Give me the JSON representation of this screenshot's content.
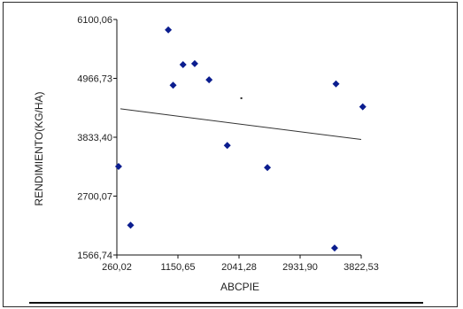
{
  "chart_data": {
    "type": "scatter",
    "xlabel": "ABCPIE",
    "ylabel": "RENDIMIENTO(KG/HA)",
    "xlim": [
      260.02,
      3822.53
    ],
    "ylim": [
      1566.74,
      6100.06
    ],
    "x_ticks": [
      "260,02",
      "1150,65",
      "2041,28",
      "2931,90",
      "3822,53"
    ],
    "y_ticks": [
      "6100,06",
      "4966,73",
      "3833,40",
      "2700,07",
      "1566,74"
    ],
    "x_tick_values": [
      260.02,
      1150.65,
      2041.28,
      2931.9,
      3822.53
    ],
    "y_tick_values": [
      6100.06,
      4966.73,
      3833.4,
      2700.07,
      1566.74
    ],
    "points": [
      {
        "x": 285,
        "y": 3270
      },
      {
        "x": 460,
        "y": 2140
      },
      {
        "x": 1010,
        "y": 5900
      },
      {
        "x": 1080,
        "y": 4835
      },
      {
        "x": 1225,
        "y": 5230
      },
      {
        "x": 1395,
        "y": 5250
      },
      {
        "x": 1605,
        "y": 4940
      },
      {
        "x": 1870,
        "y": 3675
      },
      {
        "x": 2455,
        "y": 3250
      },
      {
        "x": 3455,
        "y": 4860
      },
      {
        "x": 3435,
        "y": 1700
      },
      {
        "x": 3845,
        "y": 4420
      }
    ],
    "mean_marker": {
      "x": 2075,
      "y": 4585
    },
    "trend_line": {
      "x": [
        260.02,
        3822.53
      ],
      "y": [
        4380,
        3790
      ]
    },
    "colors": {
      "points": "#0b1d8f",
      "trend": "#333333",
      "axes": "#111111"
    }
  }
}
